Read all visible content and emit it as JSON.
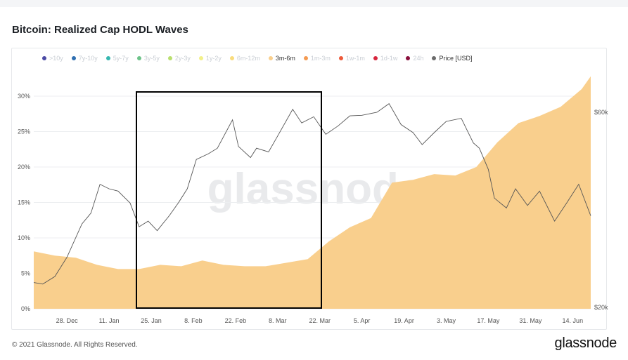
{
  "title": "Bitcoin: Realized Cap HODL Waves",
  "footer": "© 2021 Glassnode. All Rights Reserved.",
  "brand": "glassnode",
  "watermark": "glassnode",
  "legend": [
    {
      "label": ">10y",
      "color": "#4b4aa5",
      "active": false
    },
    {
      "label": "7y-10y",
      "color": "#2f6fb1",
      "active": false
    },
    {
      "label": "5y-7y",
      "color": "#35b7b0",
      "active": false
    },
    {
      "label": "3y-5y",
      "color": "#6dc389",
      "active": false
    },
    {
      "label": "2y-3y",
      "color": "#b9df6f",
      "active": false
    },
    {
      "label": "1y-2y",
      "color": "#f2f08a",
      "active": false
    },
    {
      "label": "6m-12m",
      "color": "#f9dc7d",
      "active": false
    },
    {
      "label": "3m-6m",
      "color": "#f9cf8d",
      "active": true
    },
    {
      "label": "1m-3m",
      "color": "#f49a52",
      "active": false
    },
    {
      "label": "1w-1m",
      "color": "#ed5a3a",
      "active": false
    },
    {
      "label": "1d-1w",
      "color": "#d7263d",
      "active": false
    },
    {
      "label": "24h",
      "color": "#8a0f3c",
      "active": false
    },
    {
      "label": "Price [USD]",
      "color": "#6b6b6b",
      "active": true
    }
  ],
  "chart_data": {
    "type": "area",
    "xlabels": [
      "28. Dec",
      "11. Jan",
      "25. Jan",
      "8. Feb",
      "22. Feb",
      "8. Mar",
      "22. Mar",
      "5. Apr",
      "19. Apr",
      "3. May",
      "17. May",
      "31. May",
      "14. Jun"
    ],
    "y_left_ticks": [
      "0%",
      "5%",
      "10%",
      "15%",
      "20%",
      "25%",
      "30%"
    ],
    "y_left_range": [
      0,
      30
    ],
    "y_right_ticks": [
      "$20k",
      "$60k"
    ],
    "y_right_scale": "log",
    "y_right_range": [
      20000,
      60000
    ],
    "grid": true,
    "legend_position": "top",
    "series": [
      {
        "name": "3m-6m",
        "color": "#f9cf8d",
        "x": [
          "2020-12-17",
          "2020-12-24",
          "2020-12-31",
          "2021-01-07",
          "2021-01-14",
          "2021-01-21",
          "2021-01-28",
          "2021-02-04",
          "2021-02-11",
          "2021-02-18",
          "2021-02-25",
          "2021-03-04",
          "2021-03-11",
          "2021-03-18",
          "2021-03-25",
          "2021-04-01",
          "2021-04-08",
          "2021-04-15",
          "2021-04-22",
          "2021-04-29",
          "2021-05-06",
          "2021-05-13",
          "2021-05-20",
          "2021-05-27",
          "2021-06-03",
          "2021-06-10",
          "2021-06-17",
          "2021-06-20"
        ],
        "values": [
          8.1,
          7.5,
          7.2,
          6.2,
          5.6,
          5.6,
          6.2,
          6.0,
          6.8,
          6.2,
          6.0,
          6.0,
          6.5,
          7.0,
          9.5,
          11.5,
          12.8,
          17.8,
          18.2,
          19.0,
          18.8,
          20.0,
          23.5,
          26.2,
          27.2,
          28.5,
          31.0,
          32.8
        ]
      },
      {
        "name": "Price [USD]",
        "color": "#6b6b6b",
        "x": [
          "2020-12-17",
          "2020-12-20",
          "2020-12-24",
          "2020-12-28",
          "2021-01-02",
          "2021-01-05",
          "2021-01-08",
          "2021-01-11",
          "2021-01-14",
          "2021-01-18",
          "2021-01-21",
          "2021-01-24",
          "2021-01-27",
          "2021-01-31",
          "2021-02-03",
          "2021-02-06",
          "2021-02-09",
          "2021-02-13",
          "2021-02-16",
          "2021-02-21",
          "2021-02-23",
          "2021-02-27",
          "2021-03-01",
          "2021-03-05",
          "2021-03-08",
          "2021-03-13",
          "2021-03-16",
          "2021-03-20",
          "2021-03-24",
          "2021-03-28",
          "2021-04-01",
          "2021-04-05",
          "2021-04-10",
          "2021-04-14",
          "2021-04-18",
          "2021-04-22",
          "2021-04-25",
          "2021-04-29",
          "2021-05-03",
          "2021-05-08",
          "2021-05-12",
          "2021-05-14",
          "2021-05-17",
          "2021-05-19",
          "2021-05-23",
          "2021-05-26",
          "2021-05-30",
          "2021-06-03",
          "2021-06-08",
          "2021-06-12",
          "2021-06-16",
          "2021-06-20"
        ],
        "values": [
          23000,
          22800,
          23800,
          26500,
          32000,
          34000,
          40000,
          39000,
          38500,
          36000,
          31500,
          32500,
          30800,
          33500,
          36000,
          39000,
          46000,
          47500,
          49000,
          57500,
          49500,
          46500,
          49000,
          48000,
          52500,
          61000,
          56500,
          58500,
          53000,
          55500,
          58800,
          59000,
          60000,
          63000,
          56000,
          53500,
          50000,
          53500,
          57000,
          58000,
          50500,
          49000,
          43500,
          37000,
          35000,
          39000,
          35500,
          38500,
          32500,
          36000,
          40000,
          33500
        ]
      }
    ]
  }
}
